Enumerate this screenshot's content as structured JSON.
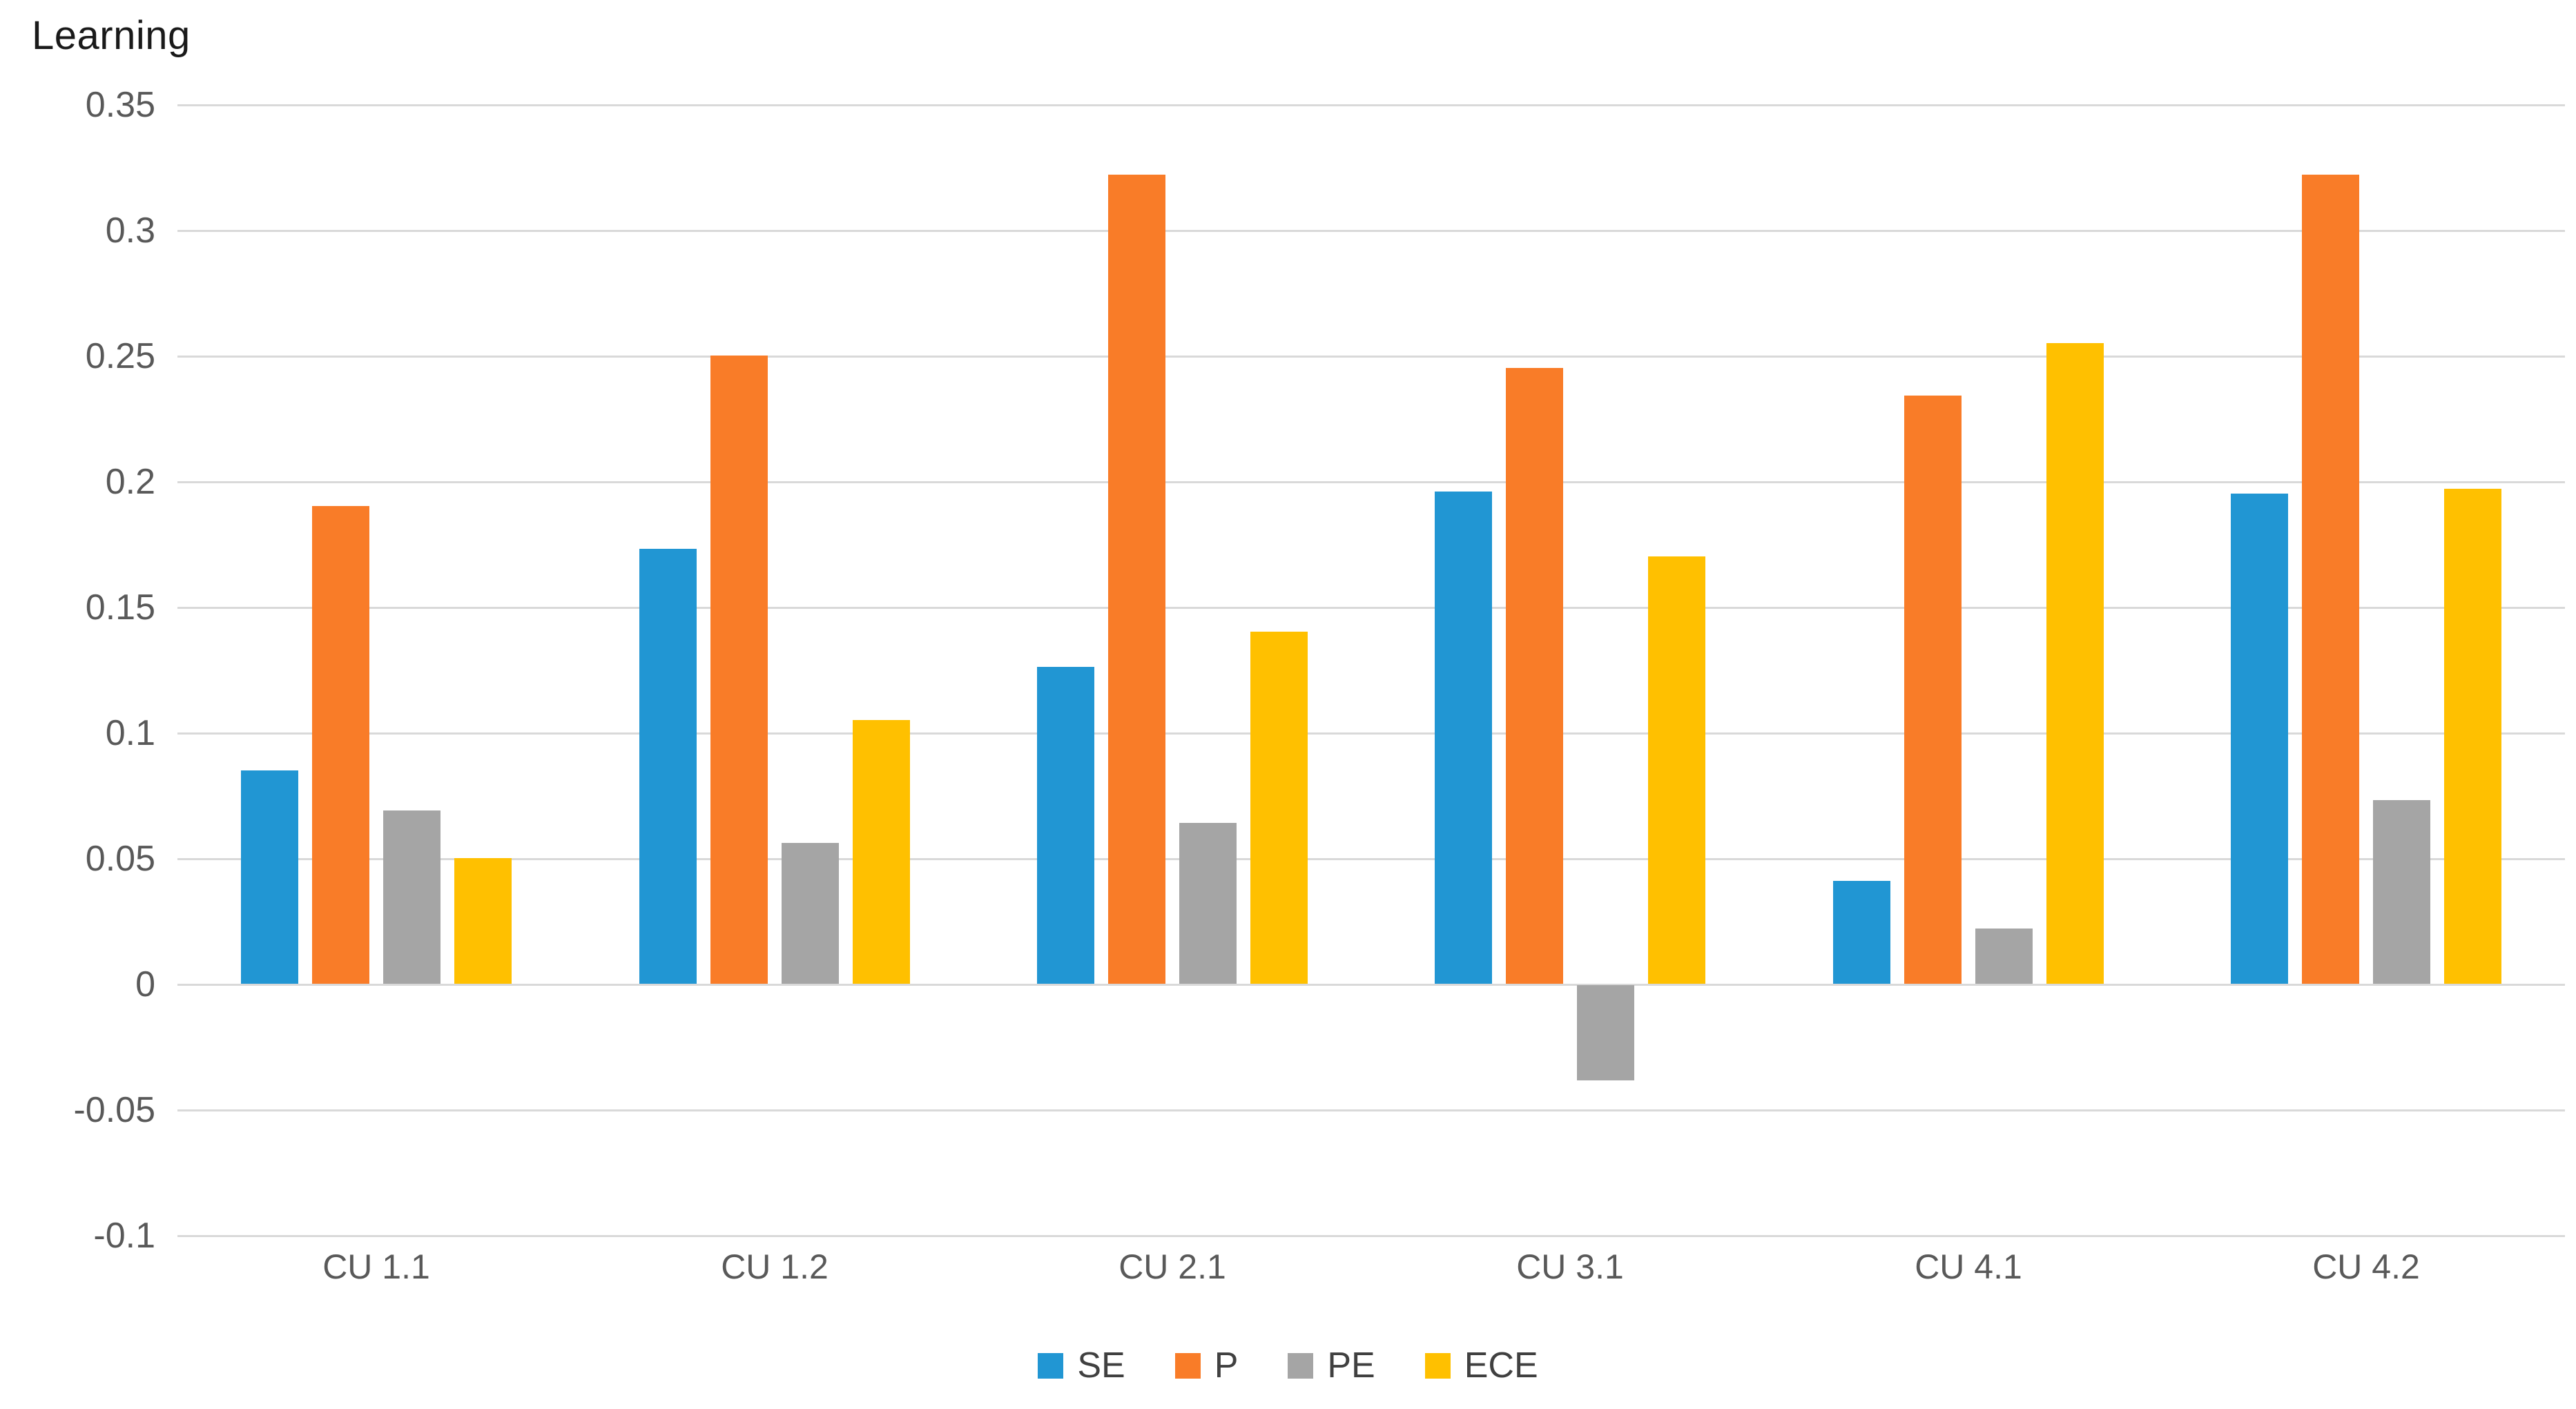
{
  "chart_data": {
    "type": "bar",
    "title": "Learning",
    "categories": [
      "CU 1.1",
      "CU 1.2",
      "CU 2.1",
      "CU 3.1",
      "CU 4.1",
      "CU 4.2"
    ],
    "series": [
      {
        "name": "SE",
        "color": "#2196d3",
        "values": [
          0.085,
          0.173,
          0.126,
          0.196,
          0.041,
          0.195
        ]
      },
      {
        "name": "P",
        "color": "#f97c28",
        "values": [
          0.19,
          0.25,
          0.322,
          0.245,
          0.234,
          0.322
        ]
      },
      {
        "name": "PE",
        "color": "#a5a5a5",
        "values": [
          0.069,
          0.056,
          0.064,
          -0.038,
          0.022,
          0.073
        ]
      },
      {
        "name": "ECE",
        "color": "#ffc000",
        "values": [
          0.05,
          0.105,
          0.14,
          0.17,
          0.255,
          0.197
        ]
      }
    ],
    "y_axis": {
      "min": -0.1,
      "max": 0.35,
      "step": 0.05,
      "tick_labels": [
        "0.35",
        "0.3",
        "0.25",
        "0.2",
        "0.15",
        "0.1",
        "0.05",
        "0",
        "-0.05",
        "-0.1"
      ]
    },
    "grid": true,
    "gridline_color": "#d9d9d9",
    "legend_position": "bottom",
    "legend_entries": [
      "SE",
      "P",
      "PE",
      "ECE"
    ]
  }
}
